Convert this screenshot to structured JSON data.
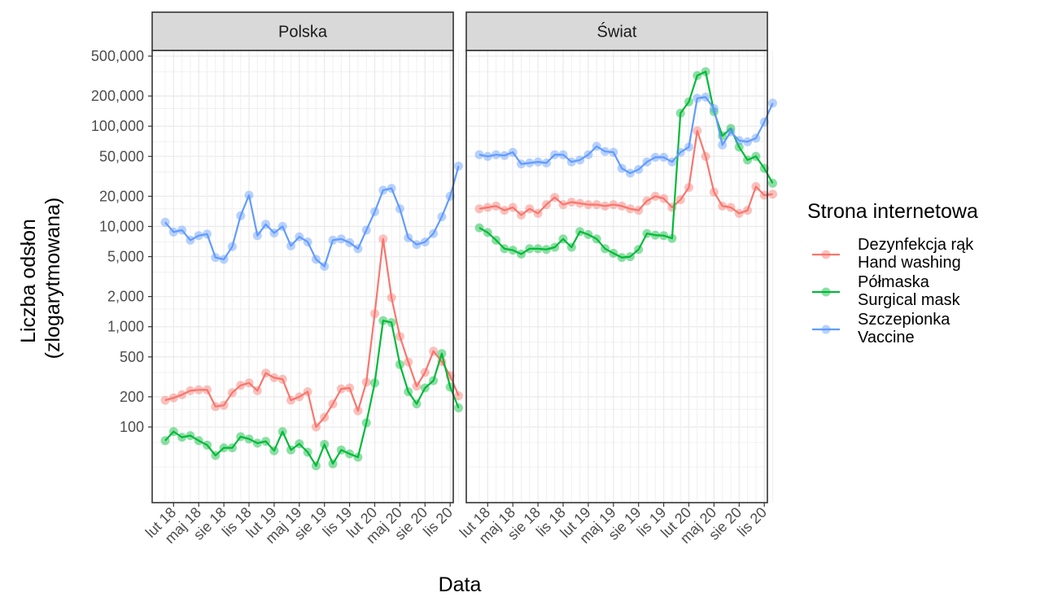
{
  "chart_data": {
    "type": "line",
    "ylabel_lines": [
      "Liczba odsłon",
      "(zlogarytmowana)"
    ],
    "xlabel": "Data",
    "y_scale": "log",
    "ylim": [
      25,
      600000
    ],
    "y_ticks": [
      {
        "value": 100,
        "label": "100"
      },
      {
        "value": 200,
        "label": "200"
      },
      {
        "value": 500,
        "label": "500"
      },
      {
        "value": 1000,
        "label": "1,000"
      },
      {
        "value": 2000,
        "label": "2,000"
      },
      {
        "value": 5000,
        "label": "5,000"
      },
      {
        "value": 10000,
        "label": "10,000"
      },
      {
        "value": 20000,
        "label": "20,000"
      },
      {
        "value": 50000,
        "label": "50,000"
      },
      {
        "value": 100000,
        "label": "100,000"
      },
      {
        "value": 200000,
        "label": "200,000"
      },
      {
        "value": 500000,
        "label": "500,000"
      }
    ],
    "y_minor_gridlines": [
      40,
      70,
      150,
      350,
      700,
      1500,
      3500,
      7000,
      15000,
      35000,
      70000,
      150000,
      350000
    ],
    "x": [
      "2018-01",
      "2018-02",
      "2018-03",
      "2018-04",
      "2018-05",
      "2018-06",
      "2018-07",
      "2018-08",
      "2018-09",
      "2018-10",
      "2018-11",
      "2018-12",
      "2019-01",
      "2019-02",
      "2019-03",
      "2019-04",
      "2019-05",
      "2019-06",
      "2019-07",
      "2019-08",
      "2019-09",
      "2019-10",
      "2019-11",
      "2019-12",
      "2020-01",
      "2020-02",
      "2020-03",
      "2020-04",
      "2020-05",
      "2020-06",
      "2020-07",
      "2020-08",
      "2020-09",
      "2020-10",
      "2020-11",
      "2020-12"
    ],
    "x_ticks": [
      {
        "index": 1,
        "label": "lut 18"
      },
      {
        "index": 4,
        "label": "maj 18"
      },
      {
        "index": 7,
        "label": "sie 18"
      },
      {
        "index": 10,
        "label": "lis 18"
      },
      {
        "index": 13,
        "label": "lut 19"
      },
      {
        "index": 16,
        "label": "maj 19"
      },
      {
        "index": 19,
        "label": "sie 19"
      },
      {
        "index": 22,
        "label": "lis 19"
      },
      {
        "index": 25,
        "label": "lut 20"
      },
      {
        "index": 28,
        "label": "maj 20"
      },
      {
        "index": 31,
        "label": "sie 20"
      },
      {
        "index": 34,
        "label": "lis 20"
      }
    ],
    "legend": {
      "title": "Strona internetowa",
      "position": "right",
      "entries": [
        {
          "lines": [
            "Dezynfekcja rąk",
            "Hand washing"
          ],
          "color": "#F8766D"
        },
        {
          "lines": [
            "Półmaska",
            "Surgical mask"
          ],
          "color": "#00BA38"
        },
        {
          "lines": [
            "Szczepionka",
            "Vaccine"
          ],
          "color": "#619CFF"
        }
      ]
    },
    "panels": [
      {
        "strip": "Polska",
        "series": [
          {
            "color": "#F8766D",
            "values": [
              185,
              195,
              210,
              230,
              235,
              235,
              160,
              165,
              220,
              260,
              275,
              230,
              345,
              310,
              300,
              185,
              200,
              225,
              100,
              125,
              170,
              240,
              245,
              145,
              280,
              1350,
              7500,
              1950,
              800,
              445,
              255,
              350,
              570,
              450,
              325,
              205
            ]
          },
          {
            "color": "#00BA38",
            "values": [
              73,
              90,
              79,
              82,
              73,
              66,
              52,
              62,
              62,
              80,
              76,
              69,
              72,
              58,
              90,
              59,
              68,
              56,
              41,
              67,
              43,
              59,
              54,
              50,
              110,
              275,
              1150,
              1100,
              420,
              225,
              170,
              245,
              290,
              540,
              250,
              155
            ]
          },
          {
            "color": "#619CFF",
            "values": [
              11000,
              8800,
              9200,
              7300,
              8100,
              8400,
              4900,
              4700,
              6300,
              12800,
              20500,
              8100,
              10500,
              8600,
              10000,
              6400,
              7900,
              7000,
              4700,
              4000,
              7300,
              7500,
              6900,
              6000,
              9200,
              14000,
              23000,
              24000,
              15000,
              7700,
              6600,
              7000,
              8500,
              12500,
              20000,
              40000
            ]
          }
        ]
      },
      {
        "strip": "Świat",
        "series": [
          {
            "color": "#F8766D",
            "values": [
              15000,
              15500,
              16000,
              14500,
              15500,
              13000,
              15000,
              13500,
              16500,
              19500,
              16500,
              17500,
              17000,
              16500,
              16500,
              16000,
              16500,
              16000,
              15000,
              14500,
              18000,
              20000,
              19000,
              15500,
              18500,
              24500,
              90000,
              50000,
              22000,
              16000,
              15500,
              13500,
              14500,
              25000,
              20500,
              21000
            ]
          },
          {
            "color": "#00BA38",
            "values": [
              9700,
              8700,
              7300,
              6000,
              5800,
              5300,
              6000,
              6000,
              5900,
              6200,
              7500,
              6200,
              8900,
              8300,
              7500,
              6000,
              5400,
              4900,
              5000,
              5900,
              8500,
              8200,
              8100,
              7600,
              135000,
              175000,
              320000,
              350000,
              140000,
              80000,
              95000,
              62000,
              46000,
              50000,
              38000,
              27000
            ]
          },
          {
            "color": "#619CFF",
            "values": [
              52000,
              50000,
              52000,
              51000,
              55000,
              42000,
              43000,
              44000,
              43000,
              52000,
              52000,
              44000,
              46000,
              52000,
              63000,
              56000,
              55000,
              38000,
              34000,
              37000,
              44000,
              49000,
              49000,
              44000,
              55000,
              62000,
              190000,
              195000,
              150000,
              65000,
              88000,
              72000,
              70000,
              76000,
              110000,
              170000
            ]
          }
        ]
      }
    ]
  }
}
